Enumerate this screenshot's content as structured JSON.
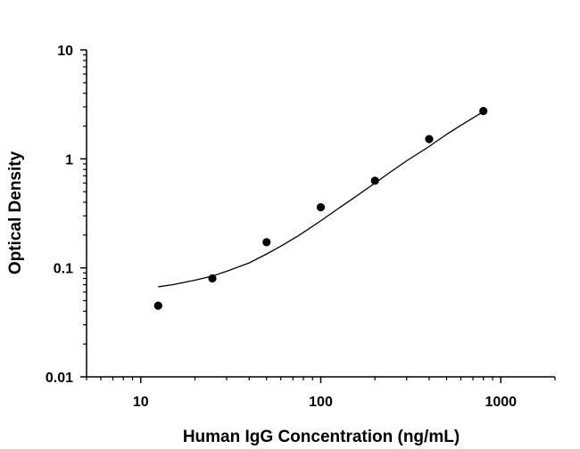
{
  "chart_data": {
    "type": "scatter",
    "title": "",
    "xlabel": "Human IgG Concentration (ng/mL)",
    "ylabel": "Optical Density",
    "xscale": "log",
    "yscale": "log",
    "xlim": [
      5,
      2000
    ],
    "ylim": [
      0.01,
      10
    ],
    "xticks": [
      10,
      100,
      1000
    ],
    "xtick_labels": [
      "10",
      "100",
      "1000"
    ],
    "yticks": [
      0.01,
      0.1,
      1,
      10
    ],
    "ytick_labels": [
      "0.01",
      "0.1",
      "1",
      "10"
    ],
    "grid": false,
    "legend": "none",
    "series": [
      {
        "marker": "filled-circle",
        "x": [
          12.5,
          25,
          50,
          100,
          200,
          400,
          800
        ],
        "y": [
          0.045,
          0.08,
          0.172,
          0.36,
          0.63,
          1.52,
          2.75
        ]
      }
    ],
    "fit_curve": {
      "x": [
        12.5,
        15,
        20,
        25,
        30,
        40,
        50,
        60,
        75,
        100,
        125,
        150,
        200,
        250,
        300,
        400,
        500,
        600,
        700,
        800
      ],
      "y": [
        0.067,
        0.07,
        0.077,
        0.084,
        0.093,
        0.111,
        0.134,
        0.158,
        0.197,
        0.27,
        0.35,
        0.43,
        0.6,
        0.78,
        0.96,
        1.3,
        1.68,
        2.03,
        2.37,
        2.72
      ]
    }
  }
}
